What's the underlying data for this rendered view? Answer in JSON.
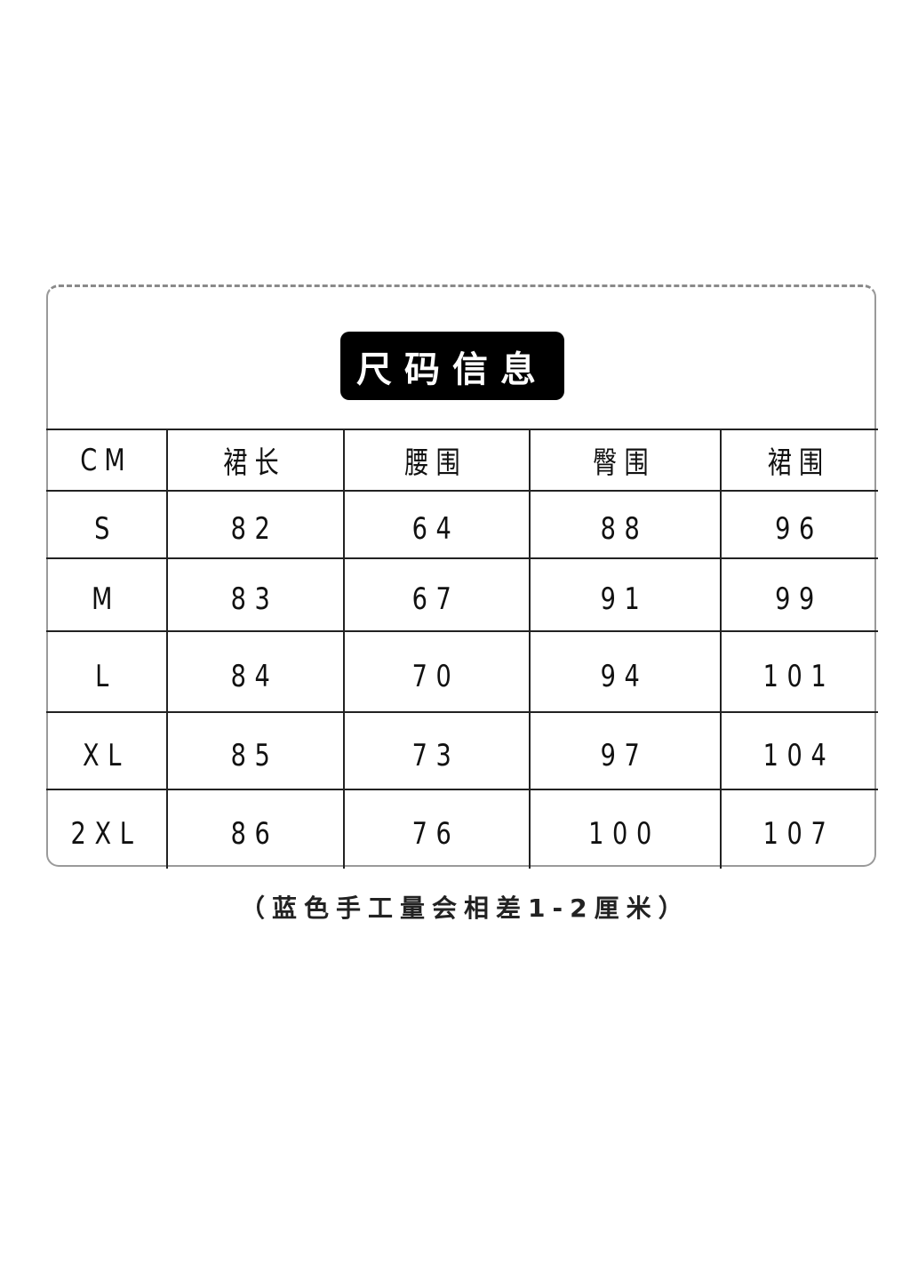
{
  "title": "尺码信息",
  "table": {
    "headers": [
      "CM",
      "裙长",
      "腰围",
      "臀围",
      "裙围"
    ],
    "rows": [
      [
        "S",
        "82",
        "64",
        "88",
        "96"
      ],
      [
        "M",
        "83",
        "67",
        "91",
        "99"
      ],
      [
        "L",
        "84",
        "70",
        "94",
        "101"
      ],
      [
        "XL",
        "85",
        "73",
        "97",
        "104"
      ],
      [
        "2XL",
        "86",
        "76",
        "100",
        "107"
      ]
    ]
  },
  "note": "（蓝色手工量会相差1-2厘米）"
}
